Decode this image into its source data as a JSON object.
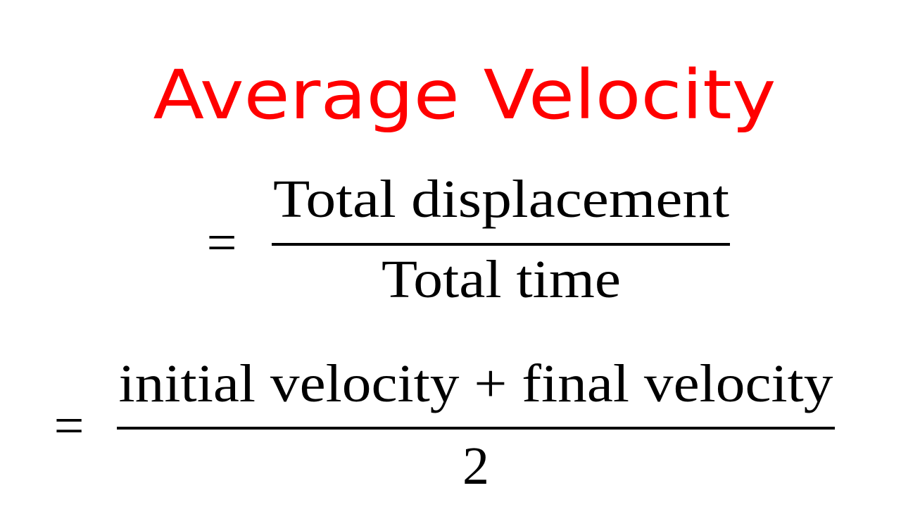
{
  "title": "Average Velocity",
  "equations": [
    {
      "sign": "=",
      "numerator": "Total displacement",
      "denominator": "Total time"
    },
    {
      "sign": "=",
      "numerator": "initial velocity + final velocity",
      "denominator": "2"
    }
  ]
}
